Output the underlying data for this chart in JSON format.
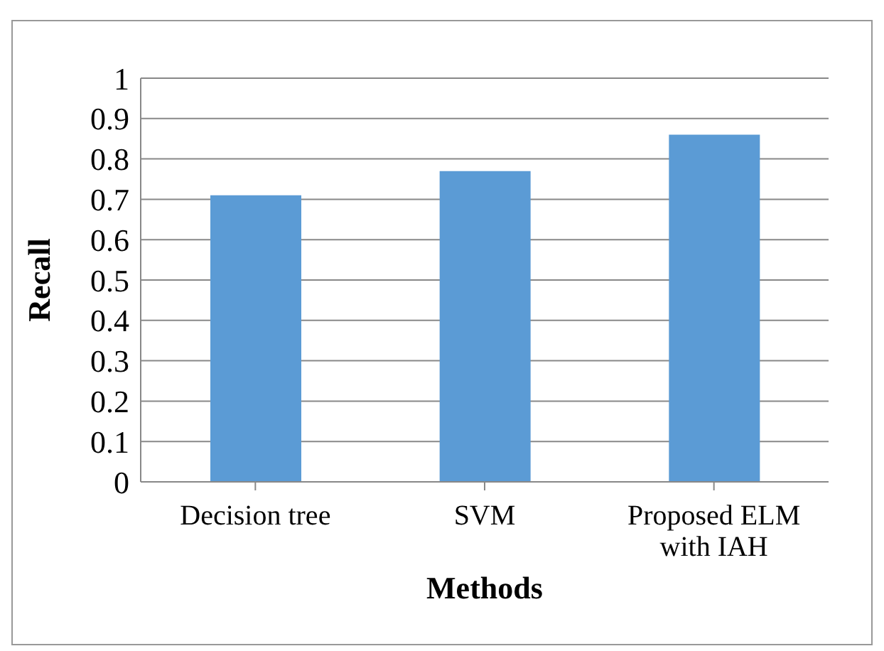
{
  "chart_data": {
    "type": "bar",
    "xlabel": "Methods",
    "ylabel": "Recall",
    "categories": [
      "Decision tree",
      "SVM",
      "Proposed ELM with IAH"
    ],
    "values": [
      0.71,
      0.77,
      0.86
    ],
    "color": "#5b9bd5",
    "ylim": [
      0,
      1
    ],
    "yticks": [
      0,
      0.1,
      0.2,
      0.3,
      0.4,
      0.5,
      0.6,
      0.7,
      0.8,
      0.9,
      1
    ],
    "grid": "y"
  }
}
